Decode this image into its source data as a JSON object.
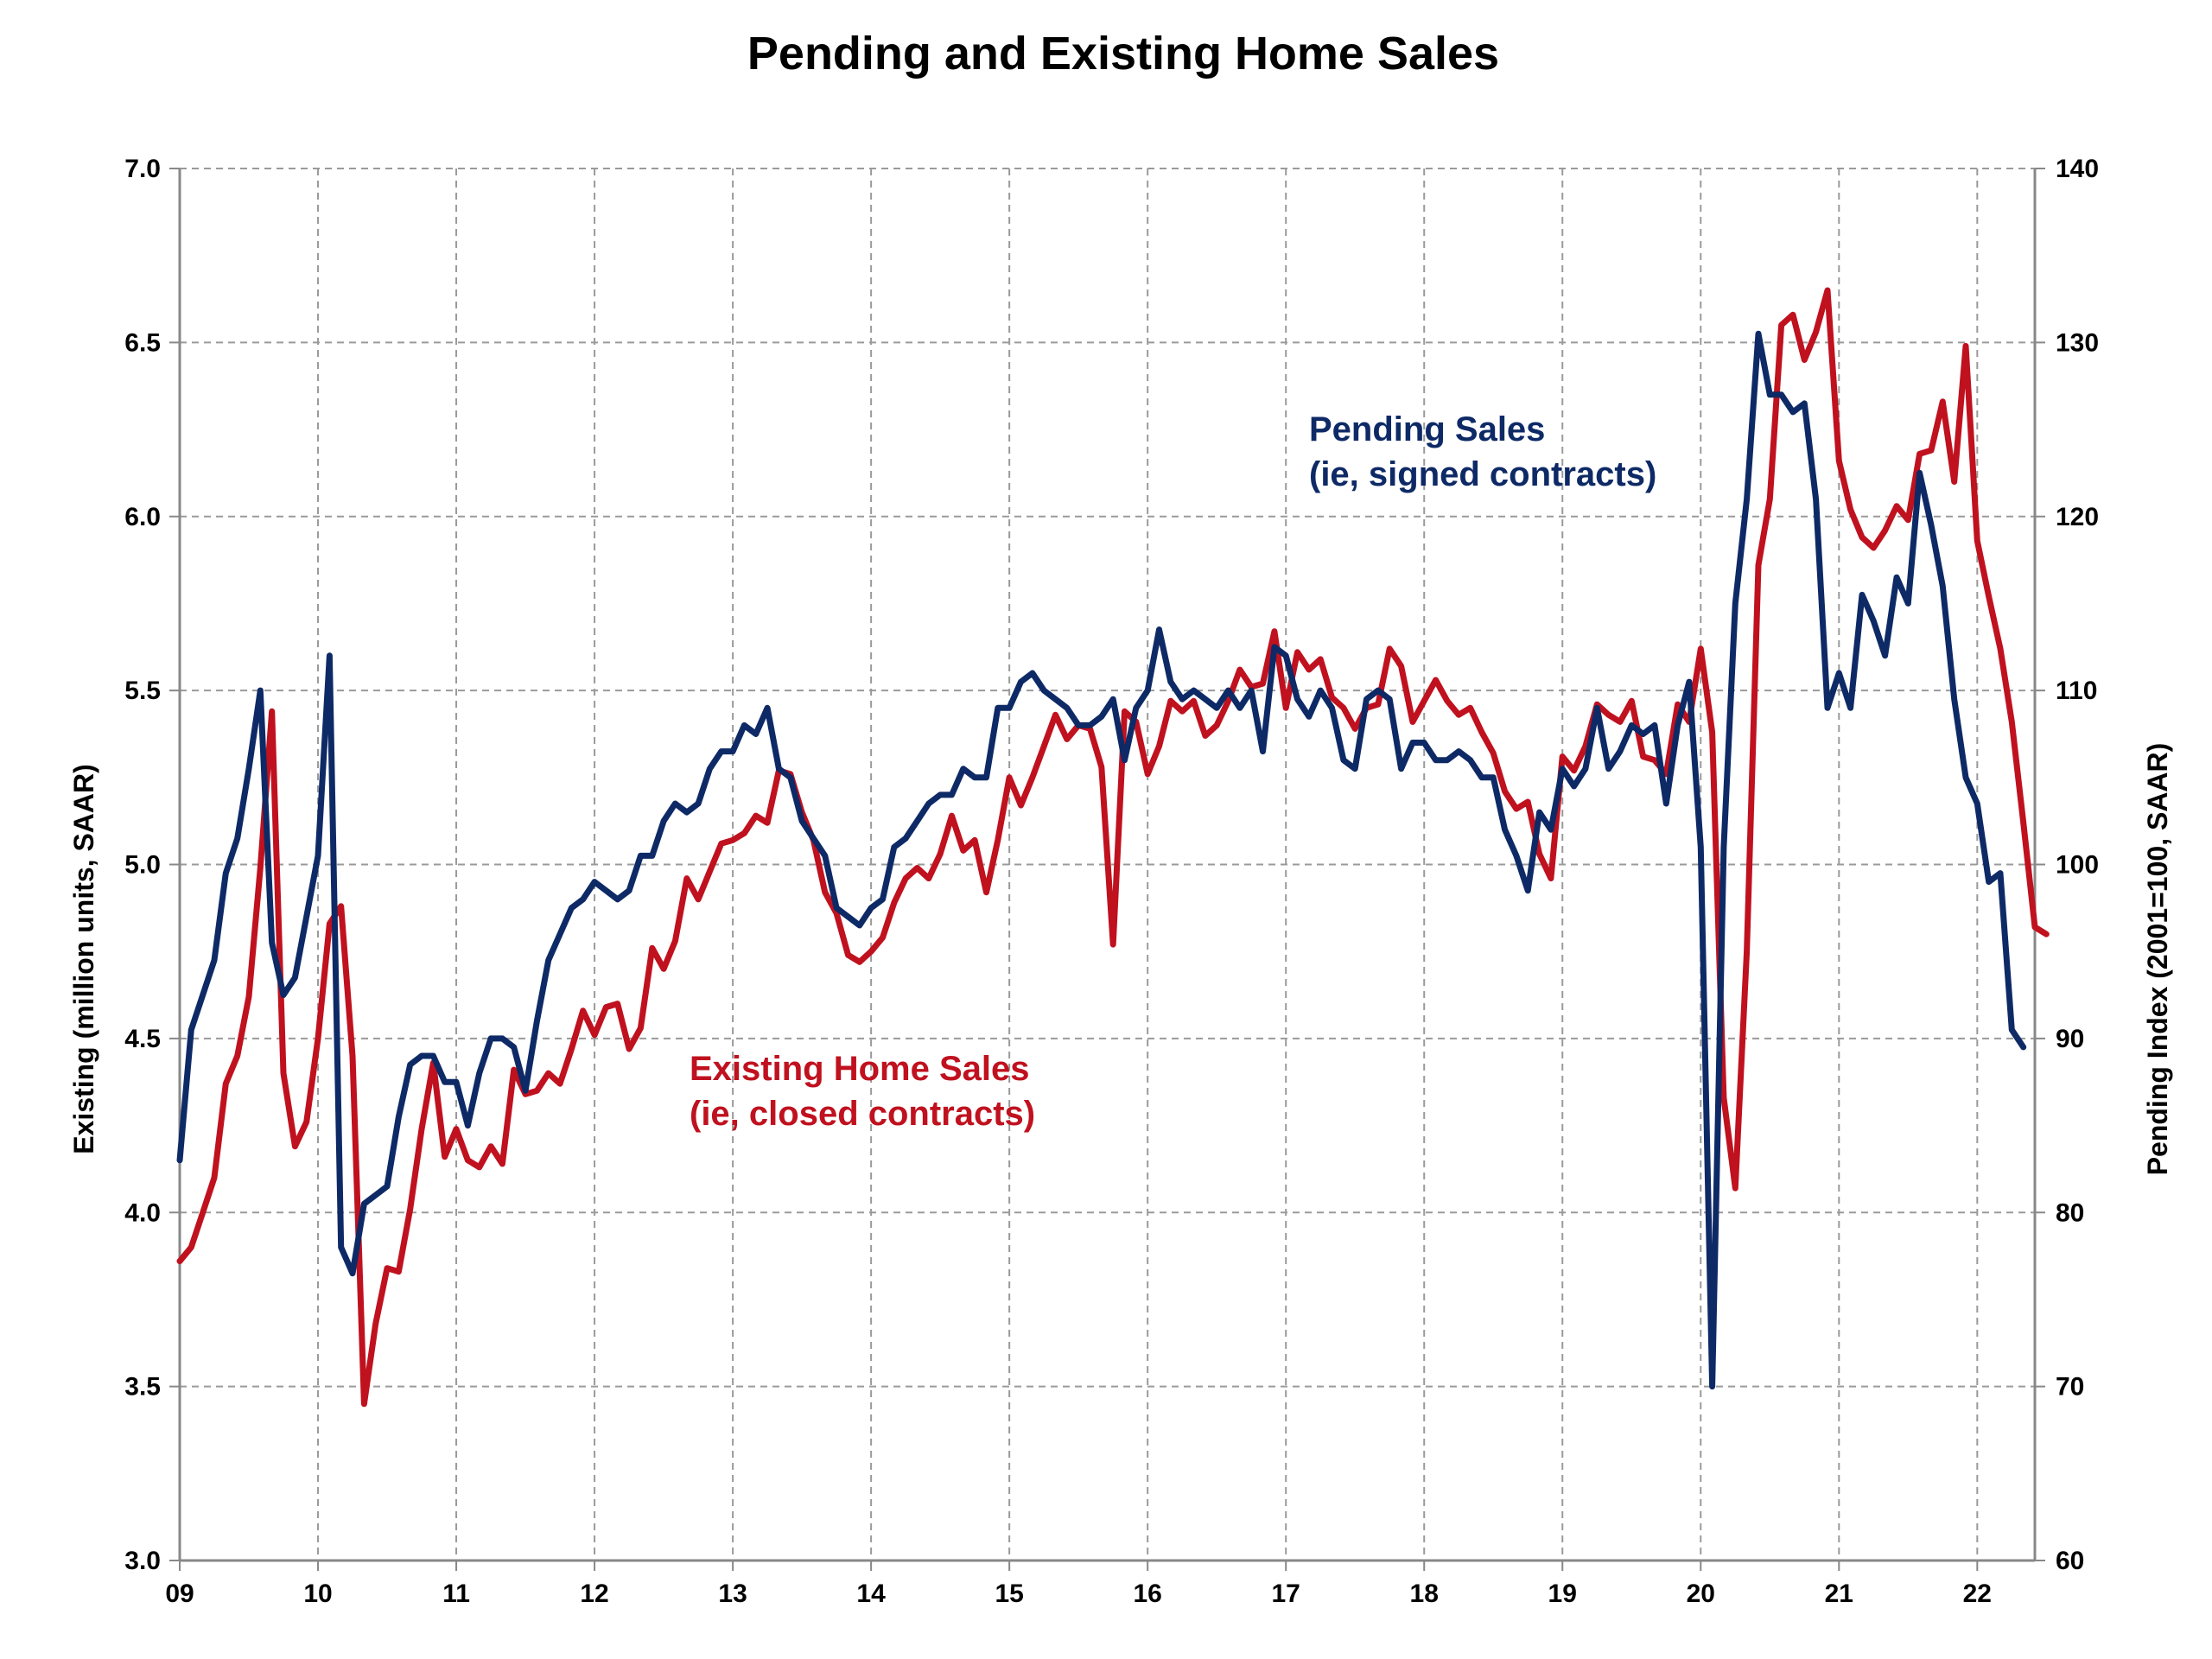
{
  "chart_data": {
    "type": "line",
    "title": "Pending and Existing Home Sales",
    "ylabel_left": "Existing (million units, SAAR)",
    "ylabel_right": "Pending Index (2001=100, SAAR)",
    "xlabel": "",
    "x_ticks": [
      "09",
      "10",
      "11",
      "12",
      "13",
      "14",
      "15",
      "16",
      "17",
      "18",
      "19",
      "20",
      "21",
      "22"
    ],
    "x_range": [
      "2009-01",
      "2022-06"
    ],
    "ylim_left": [
      3.0,
      7.0
    ],
    "yticks_left": [
      "3.0",
      "3.5",
      "4.0",
      "4.5",
      "5.0",
      "5.5",
      "6.0",
      "6.5",
      "7.0"
    ],
    "ylim_right": [
      60,
      140
    ],
    "yticks_right": [
      "60",
      "70",
      "80",
      "90",
      "100",
      "110",
      "120",
      "130",
      "140"
    ],
    "grid": true,
    "annotations": {
      "pending_line1": "Pending Sales",
      "pending_line2": "(ie, signed contracts)",
      "existing_line1": "Existing Home Sales",
      "existing_line2": "(ie, closed contracts)"
    },
    "series": [
      {
        "name": "Existing Home Sales",
        "axis": "left",
        "color": "#c0111f",
        "start": "2009-01",
        "frequency": "monthly",
        "values": [
          3.86,
          3.9,
          4.0,
          4.1,
          4.37,
          4.45,
          4.62,
          4.99,
          5.44,
          4.4,
          4.19,
          4.26,
          4.5,
          4.83,
          4.88,
          4.45,
          3.45,
          3.68,
          3.84,
          3.83,
          4.01,
          4.24,
          4.43,
          4.16,
          4.24,
          4.15,
          4.13,
          4.19,
          4.14,
          4.41,
          4.34,
          4.35,
          4.4,
          4.37,
          4.47,
          4.58,
          4.51,
          4.59,
          4.6,
          4.47,
          4.53,
          4.76,
          4.7,
          4.78,
          4.96,
          4.9,
          4.98,
          5.06,
          5.07,
          5.09,
          5.14,
          5.12,
          5.27,
          5.26,
          5.15,
          5.07,
          4.92,
          4.86,
          4.74,
          4.72,
          4.75,
          4.79,
          4.89,
          4.96,
          4.99,
          4.96,
          5.03,
          5.14,
          5.04,
          5.07,
          4.92,
          5.07,
          5.25,
          5.17,
          5.25,
          5.34,
          5.43,
          5.36,
          5.4,
          5.39,
          5.28,
          4.77,
          5.44,
          5.41,
          5.26,
          5.34,
          5.47,
          5.44,
          5.47,
          5.37,
          5.4,
          5.47,
          5.56,
          5.51,
          5.52,
          5.67,
          5.45,
          5.61,
          5.56,
          5.59,
          5.48,
          5.45,
          5.39,
          5.45,
          5.46,
          5.62,
          5.57,
          5.41,
          5.47,
          5.53,
          5.47,
          5.43,
          5.45,
          5.38,
          5.32,
          5.21,
          5.16,
          5.18,
          5.03,
          4.96,
          5.31,
          5.27,
          5.34,
          5.46,
          5.43,
          5.41,
          5.47,
          5.31,
          5.3,
          5.26,
          5.46,
          5.41,
          5.62,
          5.38,
          4.33,
          4.07,
          4.75,
          5.86,
          6.05,
          6.55,
          6.58,
          6.45,
          6.53,
          6.65,
          6.16,
          6.02,
          5.94,
          5.91,
          5.96,
          6.03,
          5.99,
          6.18,
          6.19,
          6.33,
          6.1,
          6.49,
          5.93,
          5.77,
          5.62,
          5.41,
          5.12,
          4.82,
          4.8
        ]
      },
      {
        "name": "Pending Sales",
        "axis": "right",
        "color": "#0e2a66",
        "start": "2009-01",
        "frequency": "monthly",
        "values": [
          83.0,
          90.5,
          92.5,
          94.5,
          99.5,
          101.5,
          105.5,
          110.0,
          95.5,
          92.5,
          93.5,
          97.0,
          100.5,
          112.0,
          78.0,
          76.5,
          80.5,
          81.0,
          81.5,
          85.5,
          88.5,
          89.0,
          89.0,
          87.5,
          87.5,
          85.0,
          88.0,
          90.0,
          90.0,
          89.5,
          87.0,
          91.0,
          94.5,
          96.0,
          97.5,
          98.0,
          99.0,
          98.5,
          98.0,
          98.5,
          100.5,
          100.5,
          102.5,
          103.5,
          103.0,
          103.5,
          105.5,
          106.5,
          106.5,
          108.0,
          107.5,
          109.0,
          105.5,
          105.0,
          102.5,
          101.5,
          100.5,
          97.5,
          97.0,
          96.5,
          97.5,
          98.0,
          101.0,
          101.5,
          102.5,
          103.5,
          104.0,
          104.0,
          105.5,
          105.0,
          105.0,
          109.0,
          109.0,
          110.5,
          111.0,
          110.0,
          109.5,
          109.0,
          108.0,
          108.0,
          108.5,
          109.5,
          106.0,
          109.0,
          110.0,
          113.5,
          110.5,
          109.5,
          110.0,
          109.5,
          109.0,
          110.0,
          109.0,
          110.0,
          106.5,
          112.5,
          112.0,
          109.5,
          108.5,
          110.0,
          109.0,
          106.0,
          105.5,
          109.5,
          110.0,
          109.5,
          105.5,
          107.0,
          107.0,
          106.0,
          106.0,
          106.5,
          106.0,
          105.0,
          105.0,
          102.0,
          100.5,
          98.5,
          103.0,
          102.0,
          105.5,
          104.5,
          105.5,
          109.0,
          105.5,
          106.5,
          108.0,
          107.5,
          108.0,
          103.5,
          108.0,
          110.5,
          101.0,
          70.0,
          101.0,
          115.0,
          121.0,
          130.5,
          127.0,
          127.0,
          126.0,
          126.5,
          121.0,
          109.0,
          111.0,
          109.0,
          115.5,
          114.0,
          112.0,
          116.5,
          115.0,
          122.5,
          119.5,
          116.0,
          109.5,
          105.0,
          103.5,
          99.0,
          99.5,
          90.5,
          89.5
        ]
      }
    ]
  }
}
